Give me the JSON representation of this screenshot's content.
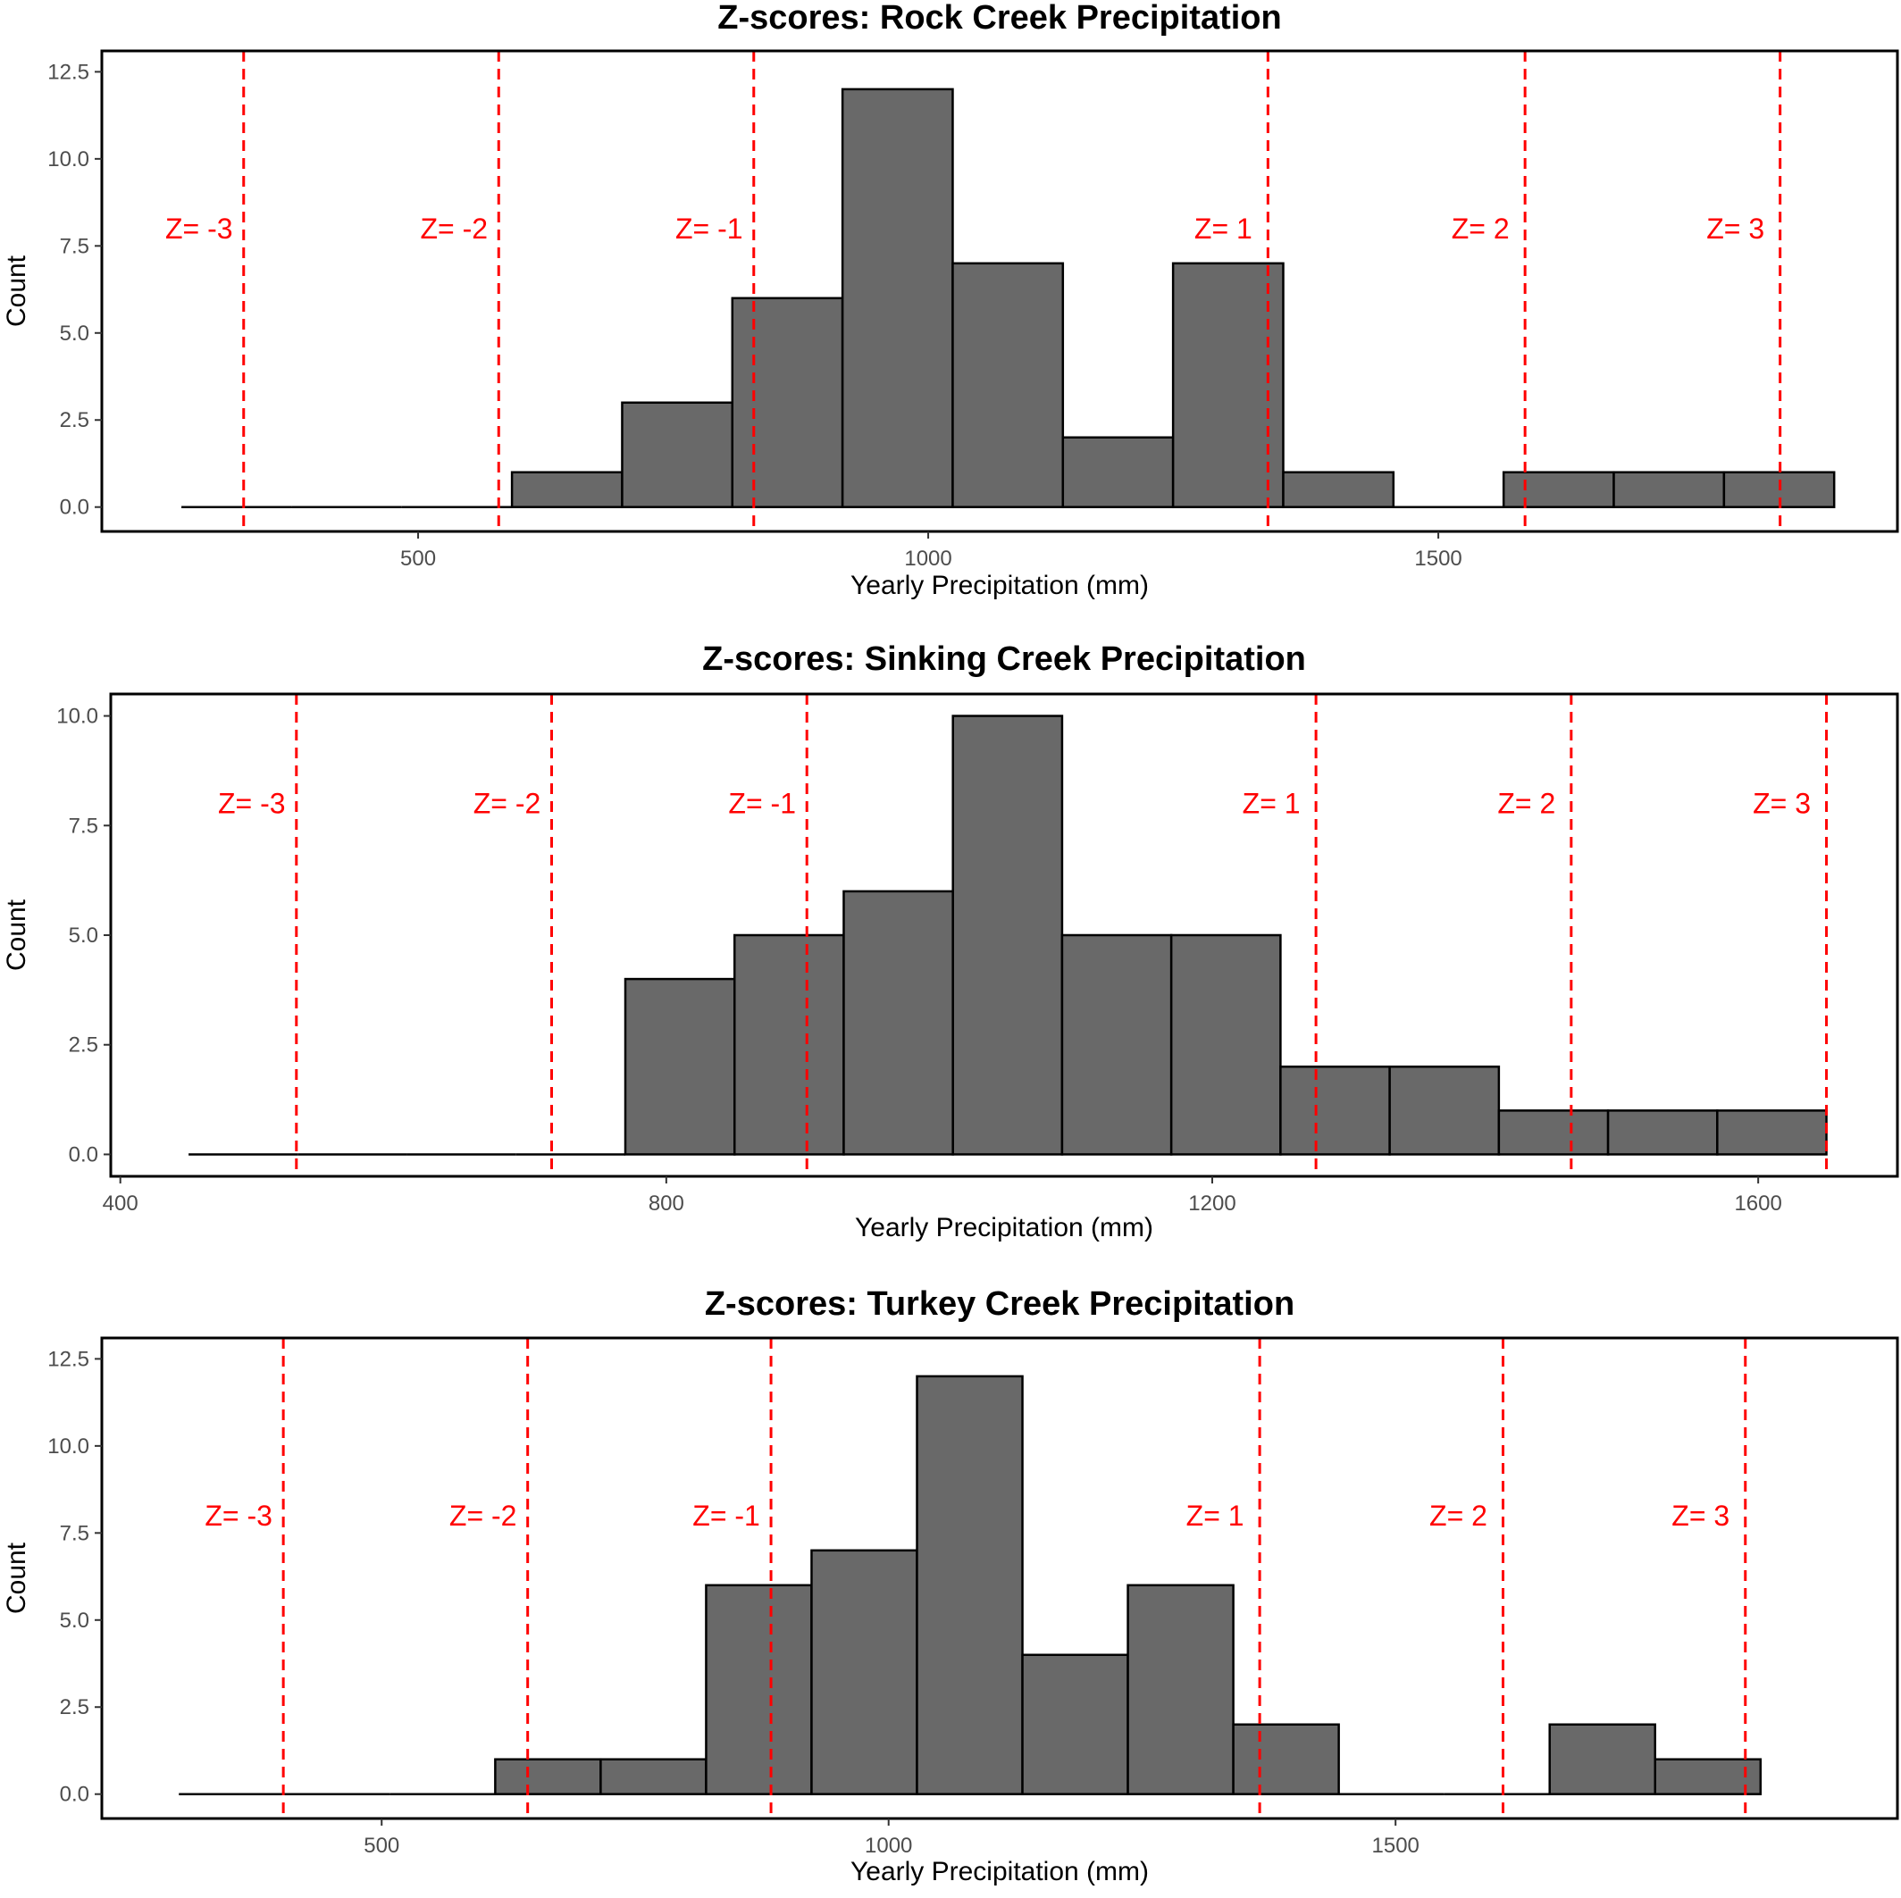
{
  "chart_data": [
    {
      "type": "bar",
      "title": "Z-scores: Rock Creek Precipitation",
      "xlabel": "Yearly Precipitation (mm)",
      "ylabel": "Count",
      "xlim": [
        190,
        1950
      ],
      "ylim": [
        -0.7,
        13.1
      ],
      "x_ticks": [
        500,
        1000,
        1500
      ],
      "y_ticks": [
        0.0,
        2.5,
        5.0,
        7.5,
        10.0,
        12.5
      ],
      "x_tick_labels": [
        "500",
        "1000",
        "1500"
      ],
      "y_tick_labels": [
        "0.0",
        "2.5",
        "5.0",
        "7.5",
        "10.0",
        "12.5"
      ],
      "grid": false,
      "bin_edges": [
        268,
        376,
        484,
        592,
        700,
        808,
        916,
        1024,
        1132,
        1240,
        1348,
        1456,
        1564,
        1672,
        1780,
        1888
      ],
      "counts": [
        0,
        0,
        0,
        1,
        3,
        6,
        12,
        7,
        2,
        7,
        1,
        0,
        1,
        1,
        1
      ],
      "bar_color": "#696969",
      "zscore_color": "#ff0000",
      "zscore_lines": [
        {
          "label": "Z= -3",
          "x": 329
        },
        {
          "label": "Z= -2",
          "x": 579
        },
        {
          "label": "Z= -1",
          "x": 829
        },
        {
          "label": "Z= 1",
          "x": 1333
        },
        {
          "label": "Z= 2",
          "x": 1585
        },
        {
          "label": "Z= 3",
          "x": 1835
        }
      ],
      "zscore_label_y": 8.0
    },
    {
      "type": "bar",
      "title": "Z-scores: Sinking Creek Precipitation",
      "xlabel": "Yearly Precipitation (mm)",
      "ylabel": "Count",
      "xlim": [
        393,
        1702
      ],
      "ylim": [
        -0.5,
        10.5
      ],
      "x_ticks": [
        400,
        800,
        1200,
        1600
      ],
      "y_ticks": [
        0.0,
        2.5,
        5.0,
        7.5,
        10.0
      ],
      "x_tick_labels": [
        "400",
        "800",
        "1200",
        "1600"
      ],
      "y_tick_labels": [
        "0.0",
        "2.5",
        "5.0",
        "7.5",
        "10.0"
      ],
      "grid": false,
      "bin_edges": [
        450,
        530,
        610,
        690,
        770,
        850,
        930,
        1010,
        1090,
        1170,
        1250,
        1330,
        1410,
        1490,
        1570,
        1650
      ],
      "counts": [
        0,
        0,
        0,
        0,
        4,
        5,
        6,
        10,
        5,
        5,
        2,
        2,
        1,
        1,
        1
      ],
      "bar_color": "#696969",
      "zscore_color": "#ff0000",
      "zscore_lines": [
        {
          "label": "Z= -3",
          "x": 529
        },
        {
          "label": "Z= -2",
          "x": 716
        },
        {
          "label": "Z= -1",
          "x": 903
        },
        {
          "label": "Z= 1",
          "x": 1276
        },
        {
          "label": "Z= 2",
          "x": 1463
        },
        {
          "label": "Z= 3",
          "x": 1650
        }
      ],
      "zscore_label_y": 8.0
    },
    {
      "type": "bar",
      "title": "Z-scores: Turkey Creek Precipitation",
      "xlabel": "Yearly Precipitation (mm)",
      "ylabel": "Count",
      "xlim": [
        224,
        1995
      ],
      "ylim": [
        -0.7,
        13.1
      ],
      "x_ticks": [
        500,
        1000,
        1500
      ],
      "y_ticks": [
        0.0,
        2.5,
        5.0,
        7.5,
        10.0,
        12.5
      ],
      "x_tick_labels": [
        "500",
        "1000",
        "1500"
      ],
      "y_tick_labels": [
        "0.0",
        "2.5",
        "5.0",
        "7.5",
        "10.0",
        "12.5"
      ],
      "grid": false,
      "bin_edges": [
        300,
        404,
        508,
        612,
        716,
        820,
        924,
        1028,
        1132,
        1236,
        1340,
        1444,
        1548,
        1652,
        1756,
        1860
      ],
      "counts": [
        0,
        0,
        0,
        1,
        1,
        6,
        7,
        12,
        4,
        6,
        2,
        0,
        0,
        2,
        1
      ],
      "bar_color": "#696969",
      "zscore_color": "#ff0000",
      "zscore_lines": [
        {
          "label": "Z= -3",
          "x": 403
        },
        {
          "label": "Z= -2",
          "x": 644
        },
        {
          "label": "Z= -1",
          "x": 884
        },
        {
          "label": "Z= 1",
          "x": 1366
        },
        {
          "label": "Z= 2",
          "x": 1606
        },
        {
          "label": "Z= 3",
          "x": 1845
        }
      ],
      "zscore_label_y": 8.0
    }
  ]
}
